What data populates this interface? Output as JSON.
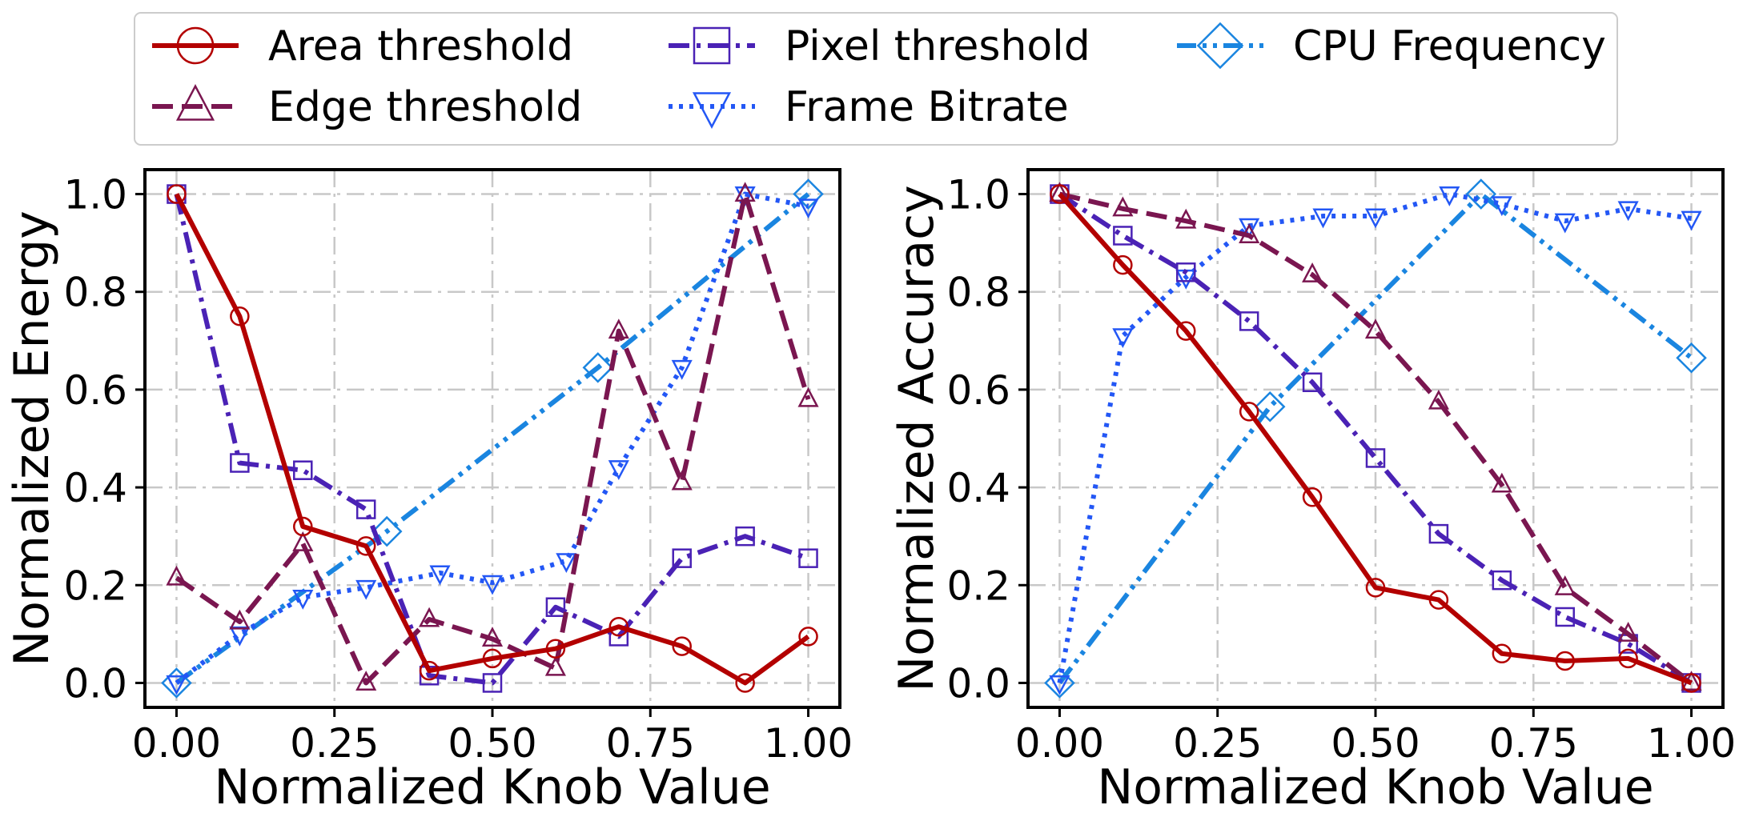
{
  "legend": {
    "items": [
      {
        "label": "Area threshold",
        "series": "area"
      },
      {
        "label": "Edge threshold",
        "series": "edge"
      },
      {
        "label": "Pixel threshold",
        "series": "pixel"
      },
      {
        "label": "Frame Bitrate",
        "series": "bitrate"
      },
      {
        "label": "CPU Frequency",
        "series": "cpu"
      }
    ],
    "placement": "top-center",
    "columns": 3
  },
  "styles": {
    "area": {
      "color": "#b30000",
      "dash": "solid",
      "marker": "circle"
    },
    "edge": {
      "color": "#7a1650",
      "dash": "dashed",
      "marker": "triangle-up"
    },
    "pixel": {
      "color": "#4a22b5",
      "dash": "dash-dot",
      "marker": "square"
    },
    "bitrate": {
      "color": "#2357f5",
      "dash": "dotted",
      "marker": "triangle-down"
    },
    "cpu": {
      "color": "#1a85e0",
      "dash": "dash-dot-dot",
      "marker": "diamond"
    }
  },
  "chart_data": [
    {
      "type": "line",
      "xlabel": "Normalized Knob Value",
      "ylabel": "Normalized Energy",
      "xlim": [
        -0.05,
        1.05
      ],
      "ylim": [
        -0.05,
        1.05
      ],
      "xticks": [
        "0.00",
        "0.25",
        "0.50",
        "0.75",
        "1.00"
      ],
      "yticks": [
        "0.0",
        "0.2",
        "0.4",
        "0.6",
        "0.8",
        "1.0"
      ],
      "grid": true,
      "series": [
        {
          "name": "Area threshold",
          "key": "area",
          "x": [
            0.0,
            0.1,
            0.2,
            0.3,
            0.4,
            0.5,
            0.6,
            0.7,
            0.8,
            0.9,
            1.0
          ],
          "y": [
            1.0,
            0.75,
            0.32,
            0.28,
            0.025,
            0.05,
            0.07,
            0.115,
            0.075,
            0.0,
            0.095
          ]
        },
        {
          "name": "Edge threshold",
          "key": "edge",
          "x": [
            0.0,
            0.1,
            0.2,
            0.3,
            0.4,
            0.5,
            0.6,
            0.7,
            0.8,
            0.9,
            1.0
          ],
          "y": [
            0.215,
            0.125,
            0.285,
            0.0,
            0.13,
            0.09,
            0.03,
            0.72,
            0.41,
            1.0,
            0.58
          ]
        },
        {
          "name": "Pixel threshold",
          "key": "pixel",
          "x": [
            0.0,
            0.1,
            0.2,
            0.3,
            0.4,
            0.5,
            0.6,
            0.7,
            0.8,
            0.9,
            1.0
          ],
          "y": [
            1.0,
            0.45,
            0.435,
            0.355,
            0.015,
            0.0,
            0.155,
            0.095,
            0.255,
            0.3,
            0.255
          ]
        },
        {
          "name": "Frame Bitrate",
          "key": "bitrate",
          "x": [
            0.0,
            0.1,
            0.2,
            0.3,
            0.417,
            0.5,
            0.617,
            0.7,
            0.8,
            0.9,
            1.0
          ],
          "y": [
            0.0,
            0.1,
            0.175,
            0.195,
            0.225,
            0.205,
            0.25,
            0.44,
            0.645,
            1.0,
            0.975
          ]
        },
        {
          "name": "CPU Frequency",
          "key": "cpu",
          "x": [
            0.0,
            0.333,
            0.667,
            1.0
          ],
          "y": [
            0.0,
            0.31,
            0.645,
            1.0
          ]
        }
      ]
    },
    {
      "type": "line",
      "xlabel": "Normalized Knob Value",
      "ylabel": "Normalized Accuracy",
      "xlim": [
        -0.05,
        1.05
      ],
      "ylim": [
        -0.05,
        1.05
      ],
      "xticks": [
        "0.00",
        "0.25",
        "0.50",
        "0.75",
        "1.00"
      ],
      "yticks": [
        "0.0",
        "0.2",
        "0.4",
        "0.6",
        "0.8",
        "1.0"
      ],
      "grid": true,
      "series": [
        {
          "name": "Area threshold",
          "key": "area",
          "x": [
            0.0,
            0.1,
            0.2,
            0.3,
            0.4,
            0.5,
            0.6,
            0.7,
            0.8,
            0.9,
            1.0
          ],
          "y": [
            1.0,
            0.855,
            0.72,
            0.555,
            0.38,
            0.195,
            0.17,
            0.06,
            0.045,
            0.05,
            0.0
          ]
        },
        {
          "name": "Edge threshold",
          "key": "edge",
          "x": [
            0.0,
            0.1,
            0.2,
            0.3,
            0.4,
            0.5,
            0.6,
            0.7,
            0.8,
            0.9,
            1.0
          ],
          "y": [
            1.0,
            0.97,
            0.945,
            0.915,
            0.835,
            0.72,
            0.575,
            0.405,
            0.195,
            0.1,
            0.0
          ]
        },
        {
          "name": "Pixel threshold",
          "key": "pixel",
          "x": [
            0.0,
            0.1,
            0.2,
            0.3,
            0.4,
            0.5,
            0.6,
            0.7,
            0.8,
            0.9,
            1.0
          ],
          "y": [
            1.0,
            0.915,
            0.84,
            0.74,
            0.615,
            0.46,
            0.305,
            0.21,
            0.135,
            0.08,
            0.0
          ]
        },
        {
          "name": "Frame Bitrate",
          "key": "bitrate",
          "x": [
            0.0,
            0.1,
            0.2,
            0.3,
            0.417,
            0.5,
            0.617,
            0.7,
            0.8,
            0.9,
            1.0
          ],
          "y": [
            0.0,
            0.71,
            0.83,
            0.935,
            0.955,
            0.955,
            1.0,
            0.98,
            0.945,
            0.97,
            0.95
          ]
        },
        {
          "name": "CPU Frequency",
          "key": "cpu",
          "x": [
            0.0,
            0.333,
            0.667,
            1.0
          ],
          "y": [
            0.0,
            0.565,
            1.0,
            0.665
          ]
        }
      ]
    }
  ]
}
